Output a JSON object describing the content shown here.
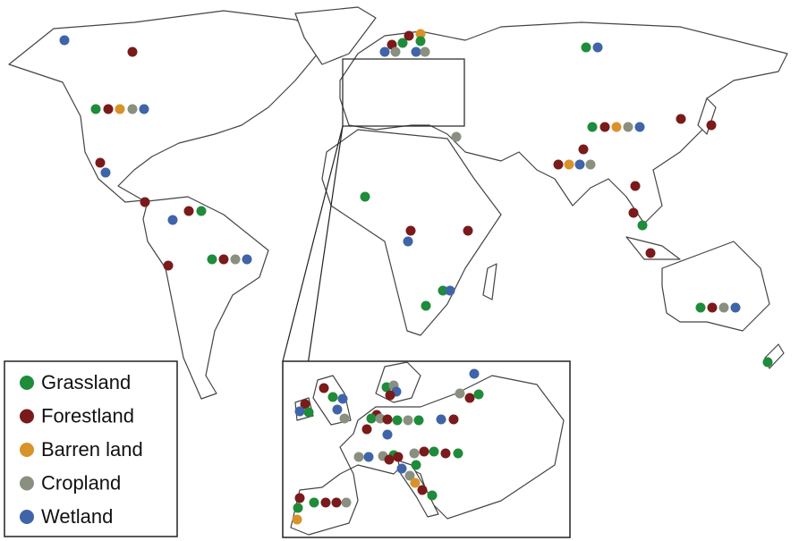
{
  "legend": {
    "items": [
      {
        "name": "Grassland",
        "color": "#1e8c3a"
      },
      {
        "name": "Forestland",
        "color": "#7a1a1a"
      },
      {
        "name": "Barren land",
        "color": "#d8922a"
      },
      {
        "name": "Cropland",
        "color": "#8a9080"
      },
      {
        "name": "Wetland",
        "color": "#3f64a8"
      }
    ]
  }
}
